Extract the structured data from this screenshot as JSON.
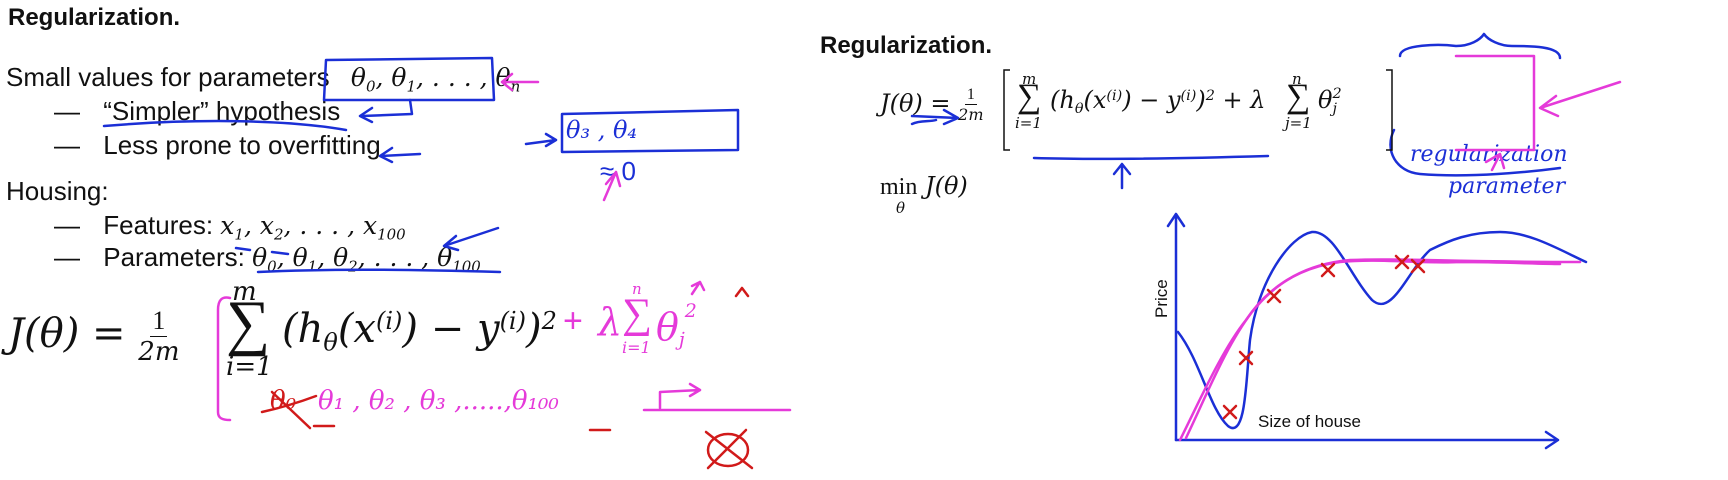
{
  "left": {
    "title": "Regularization.",
    "line1": "Small values for parameters",
    "bullet1": "“Simpler” hypothesis",
    "bullet2": "Less prone to overfitting",
    "housing": "Housing:",
    "bullet3_label": "Features:",
    "bullet4_label": "Parameters:",
    "dash": "—"
  },
  "right": {
    "title": "Regularization.",
    "min_text": "min",
    "chart": {
      "xlabel": "Size of house",
      "ylabel": "Price"
    }
  },
  "annotations": {
    "theta34": "θ₃ , θ₄",
    "approx0": "≈ 0",
    "reg_param_1": "regularization",
    "reg_param_2": "parameter",
    "crossed_theta0": "θ₀",
    "theta_list": "θ₁ , θ₂ , θ₃ ,.....,θ₁₀₀",
    "i1": "i=1",
    "n": "n"
  },
  "colors": {
    "ink_blue": "#1b2fd6",
    "ink_magenta": "#e53ad9",
    "ink_red": "#d11a1a",
    "text": "#111111"
  }
}
